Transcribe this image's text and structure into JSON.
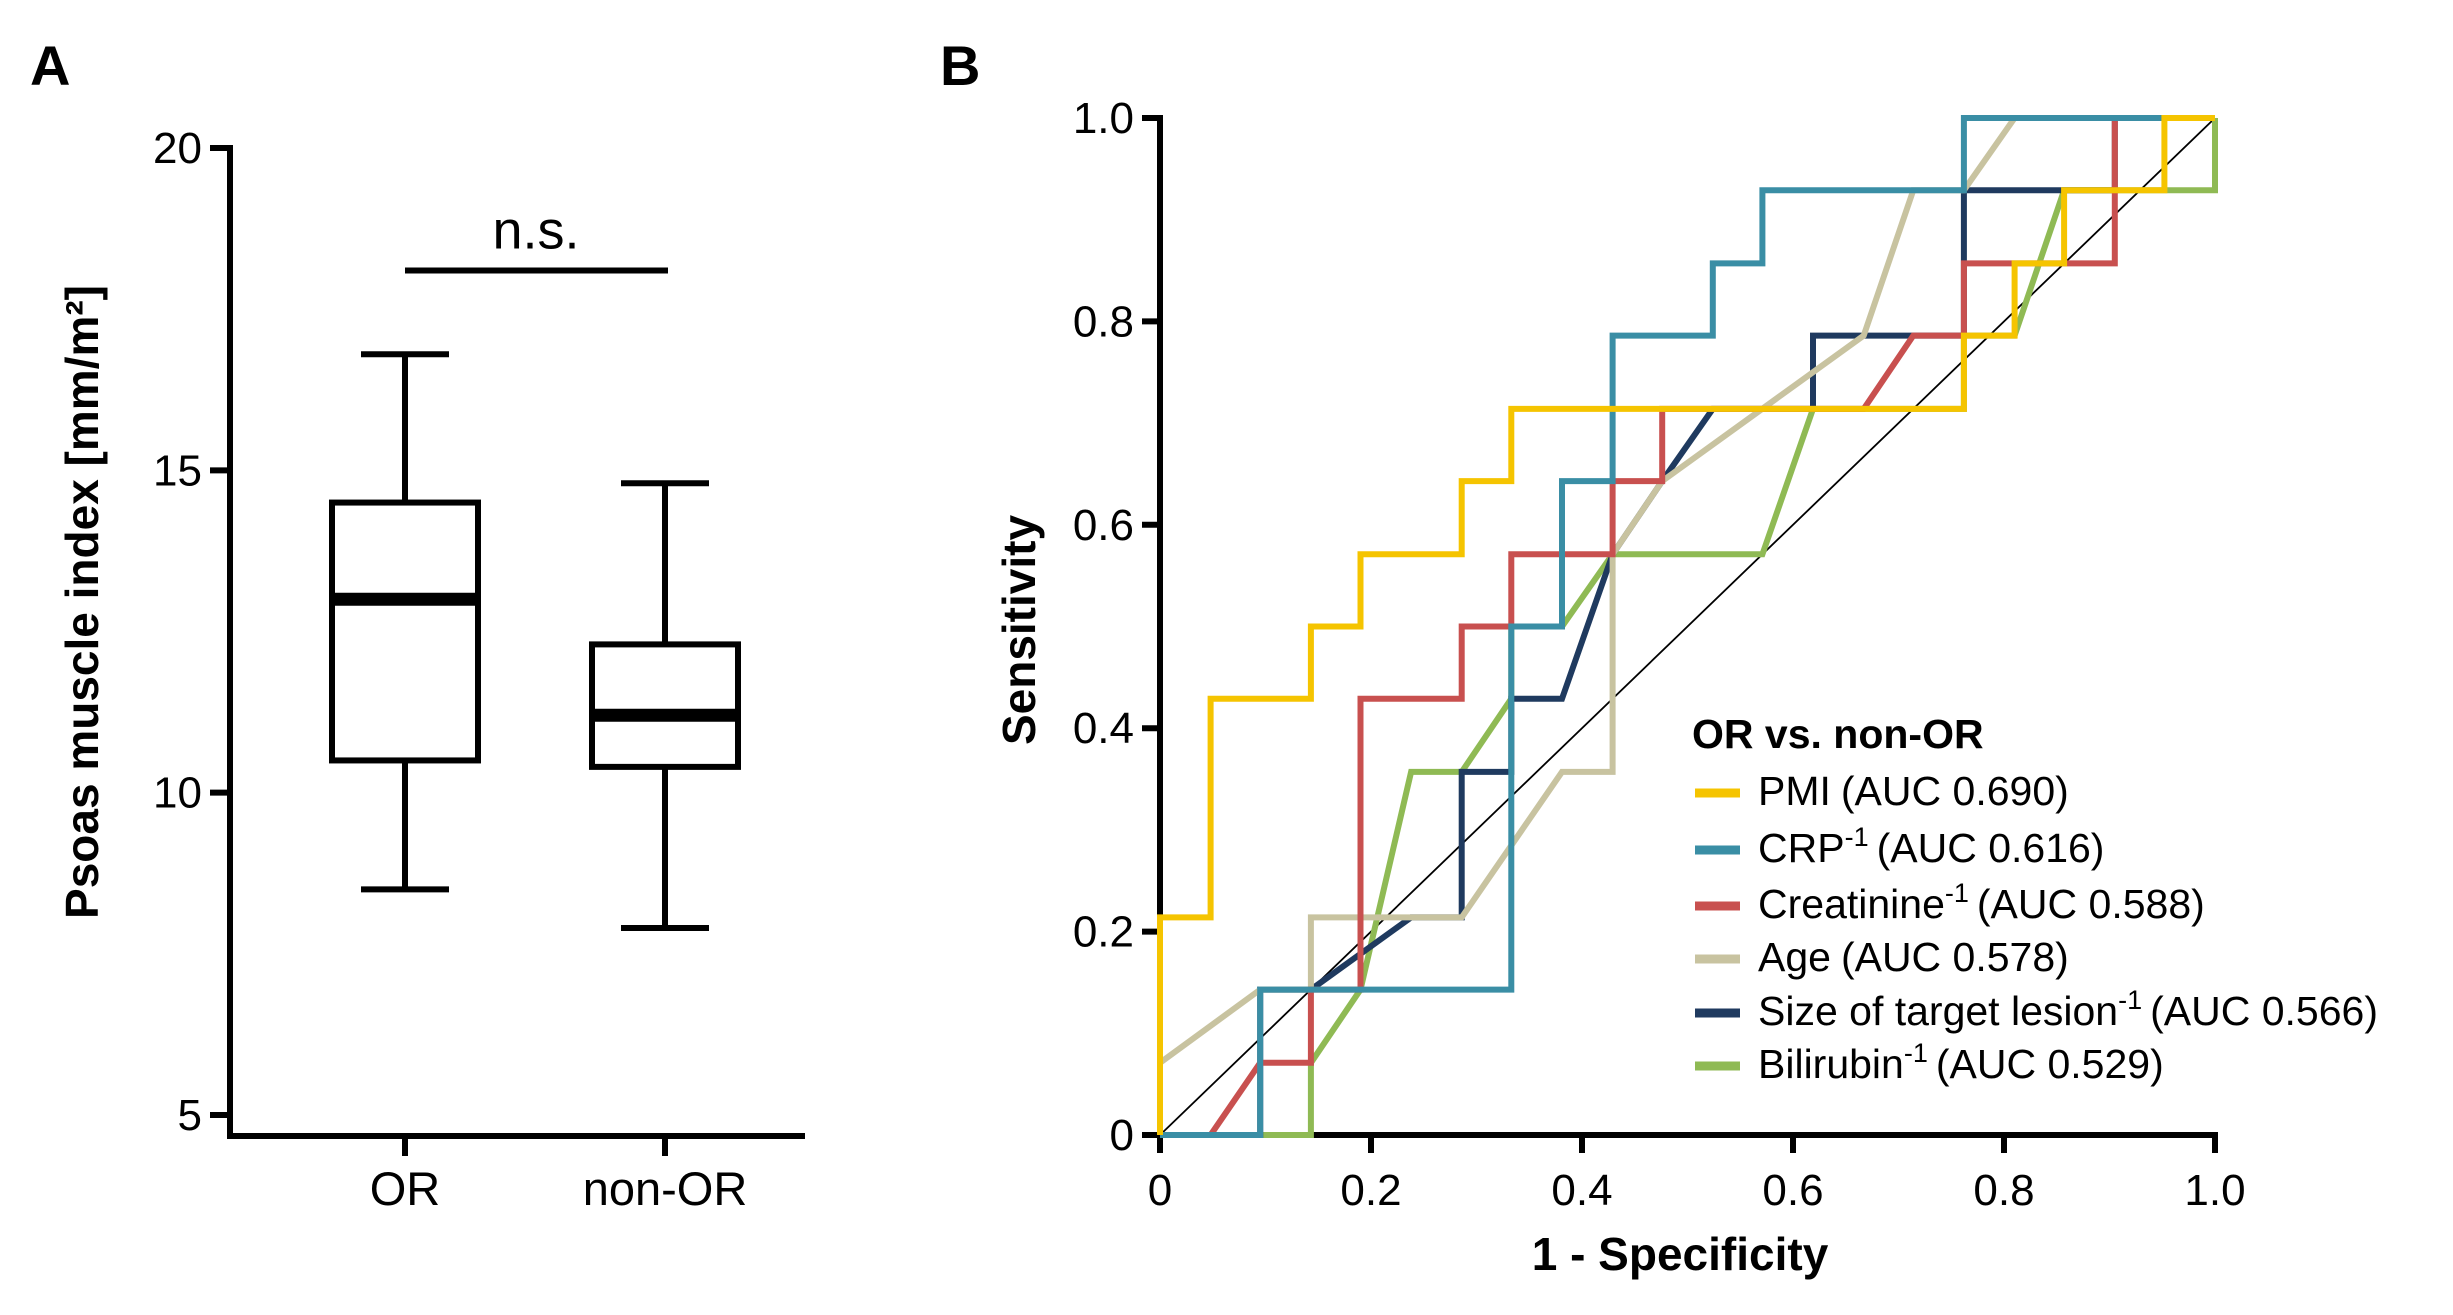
{
  "chart_data": [
    {
      "panel": "A",
      "type": "box",
      "ylabel": "Psoas muscle index [mm/m²]",
      "ylim": [
        5,
        20
      ],
      "yticks": [
        5,
        10,
        15,
        20
      ],
      "categories": [
        "OR",
        "non-OR"
      ],
      "boxes": [
        {
          "category": "OR",
          "whisker_low": 8.5,
          "q1": 10.5,
          "median": 13.0,
          "q3": 14.5,
          "whisker_high": 16.8
        },
        {
          "category": "non-OR",
          "whisker_low": 7.9,
          "q1": 10.4,
          "median": 11.2,
          "q3": 12.3,
          "whisker_high": 14.8
        }
      ],
      "significance": {
        "label": "n.s.",
        "y": 18.1
      }
    },
    {
      "panel": "B",
      "type": "line",
      "title": "",
      "xlabel": "1 - Specificity",
      "ylabel": "Sensitivity",
      "xlim": [
        0,
        1
      ],
      "ylim": [
        0,
        1
      ],
      "xticks": [
        "0",
        "0.2",
        "0.4",
        "0.6",
        "0.8",
        "1.0"
      ],
      "yticks": [
        "0",
        "0.2",
        "0.4",
        "0.6",
        "0.8",
        "1.0"
      ],
      "reference_line": "diagonal",
      "legend": {
        "title": "OR vs. non-OR",
        "position": "lower-right"
      },
      "series": [
        {
          "name": "PMI",
          "sup": "",
          "auc_text": "(AUC 0.690)",
          "color": "#F5C400",
          "points": [
            [
              0,
              0
            ],
            [
              0,
              0.214
            ],
            [
              0.048,
              0.214
            ],
            [
              0.048,
              0.429
            ],
            [
              0.143,
              0.429
            ],
            [
              0.143,
              0.5
            ],
            [
              0.19,
              0.5
            ],
            [
              0.19,
              0.571
            ],
            [
              0.286,
              0.571
            ],
            [
              0.286,
              0.643
            ],
            [
              0.333,
              0.643
            ],
            [
              0.333,
              0.714
            ],
            [
              0.762,
              0.714
            ],
            [
              0.762,
              0.786
            ],
            [
              0.81,
              0.786
            ],
            [
              0.81,
              0.857
            ],
            [
              0.857,
              0.857
            ],
            [
              0.857,
              0.929
            ],
            [
              0.952,
              0.929
            ],
            [
              0.952,
              1.0
            ],
            [
              1.0,
              1.0
            ]
          ]
        },
        {
          "name": "CRP",
          "sup": "-1",
          "auc_text": "(AUC 0.616)",
          "color": "#3A8EA5",
          "points": [
            [
              0,
              0
            ],
            [
              0.095,
              0
            ],
            [
              0.095,
              0.143
            ],
            [
              0.333,
              0.143
            ],
            [
              0.333,
              0.5
            ],
            [
              0.381,
              0.5
            ],
            [
              0.381,
              0.643
            ],
            [
              0.429,
              0.643
            ],
            [
              0.429,
              0.786
            ],
            [
              0.524,
              0.786
            ],
            [
              0.524,
              0.857
            ],
            [
              0.571,
              0.857
            ],
            [
              0.571,
              0.929
            ],
            [
              0.762,
              0.929
            ],
            [
              0.762,
              1.0
            ],
            [
              1.0,
              1.0
            ]
          ]
        },
        {
          "name": "Creatinine",
          "sup": "-1",
          "auc_text": "(AUC 0.588)",
          "color": "#C8504F",
          "points": [
            [
              0,
              0
            ],
            [
              0.048,
              0
            ],
            [
              0.095,
              0.071
            ],
            [
              0.143,
              0.071
            ],
            [
              0.143,
              0.143
            ],
            [
              0.19,
              0.143
            ],
            [
              0.19,
              0.429
            ],
            [
              0.286,
              0.429
            ],
            [
              0.286,
              0.5
            ],
            [
              0.333,
              0.5
            ],
            [
              0.333,
              0.571
            ],
            [
              0.429,
              0.571
            ],
            [
              0.429,
              0.643
            ],
            [
              0.476,
              0.643
            ],
            [
              0.476,
              0.714
            ],
            [
              0.667,
              0.714
            ],
            [
              0.714,
              0.786
            ],
            [
              0.762,
              0.786
            ],
            [
              0.762,
              0.857
            ],
            [
              0.905,
              0.857
            ],
            [
              0.905,
              1.0
            ],
            [
              1.0,
              1.0
            ]
          ]
        },
        {
          "name": "Age",
          "sup": "",
          "auc_text": "(AUC 0.578)",
          "color": "#C8C3A0",
          "points": [
            [
              0,
              0
            ],
            [
              0,
              0.071
            ],
            [
              0.095,
              0.143
            ],
            [
              0.143,
              0.143
            ],
            [
              0.143,
              0.214
            ],
            [
              0.286,
              0.214
            ],
            [
              0.381,
              0.357
            ],
            [
              0.429,
              0.357
            ],
            [
              0.429,
              0.571
            ],
            [
              0.476,
              0.643
            ],
            [
              0.667,
              0.786
            ],
            [
              0.714,
              0.929
            ],
            [
              0.762,
              0.929
            ],
            [
              0.81,
              1.0
            ],
            [
              1.0,
              1.0
            ]
          ]
        },
        {
          "name": "Size of target lesion",
          "sup": "-1",
          "auc_text": "(AUC 0.566)",
          "color": "#1F3A5F",
          "points": [
            [
              0,
              0
            ],
            [
              0.048,
              0
            ],
            [
              0.095,
              0
            ],
            [
              0.095,
              0.143
            ],
            [
              0.143,
              0.143
            ],
            [
              0.238,
              0.214
            ],
            [
              0.286,
              0.214
            ],
            [
              0.286,
              0.357
            ],
            [
              0.333,
              0.357
            ],
            [
              0.333,
              0.429
            ],
            [
              0.381,
              0.429
            ],
            [
              0.429,
              0.571
            ],
            [
              0.476,
              0.643
            ],
            [
              0.524,
              0.714
            ],
            [
              0.619,
              0.714
            ],
            [
              0.619,
              0.786
            ],
            [
              0.762,
              0.786
            ],
            [
              0.762,
              0.929
            ],
            [
              0.905,
              0.929
            ],
            [
              0.905,
              1.0
            ],
            [
              1.0,
              1.0
            ]
          ]
        },
        {
          "name": "Bilirubin",
          "sup": "-1",
          "auc_text": "(AUC 0.529)",
          "color": "#8FBA54",
          "points": [
            [
              0,
              0
            ],
            [
              0.095,
              0
            ],
            [
              0.143,
              0
            ],
            [
              0.143,
              0.071
            ],
            [
              0.19,
              0.143
            ],
            [
              0.238,
              0.357
            ],
            [
              0.286,
              0.357
            ],
            [
              0.333,
              0.429
            ],
            [
              0.333,
              0.5
            ],
            [
              0.381,
              0.5
            ],
            [
              0.429,
              0.571
            ],
            [
              0.571,
              0.571
            ],
            [
              0.619,
              0.714
            ],
            [
              0.762,
              0.714
            ],
            [
              0.762,
              0.786
            ],
            [
              0.81,
              0.786
            ],
            [
              0.857,
              0.929
            ],
            [
              0.952,
              0.929
            ],
            [
              1.0,
              0.929
            ],
            [
              1.0,
              1.0
            ]
          ]
        }
      ]
    }
  ]
}
